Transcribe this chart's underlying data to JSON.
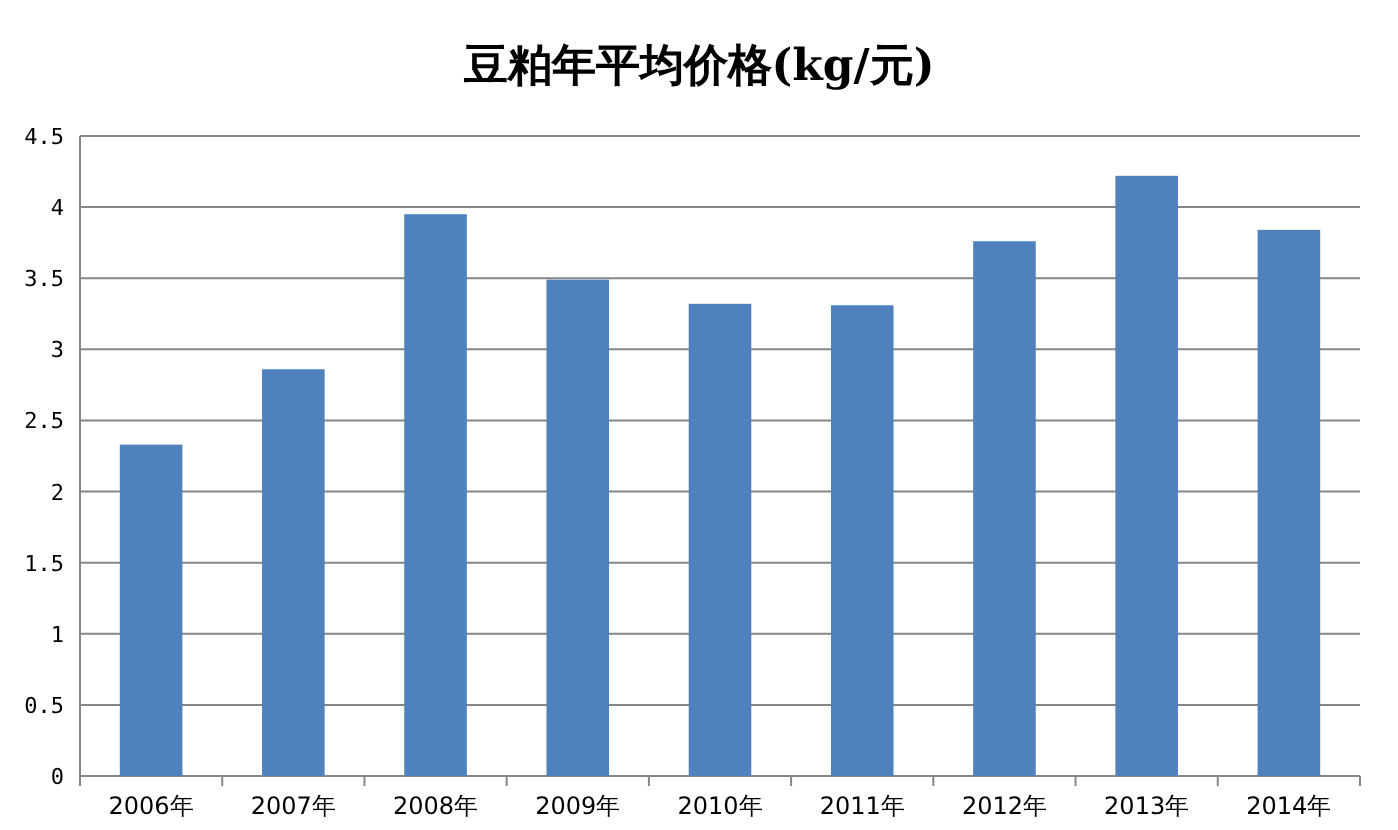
{
  "chart_data": {
    "type": "bar",
    "title": "豆粕年平均价格(kg/元)",
    "categories": [
      "2006年",
      "2007年",
      "2008年",
      "2009年",
      "2010年",
      "2011年",
      "2012年",
      "2013年",
      "2014年"
    ],
    "values": [
      2.33,
      2.86,
      3.95,
      3.49,
      3.32,
      3.31,
      3.76,
      4.22,
      3.84
    ],
    "color": "#4f81bd",
    "ylim": [
      0,
      4.5
    ],
    "yticks": [
      0,
      0.5,
      1,
      1.5,
      2,
      2.5,
      3,
      3.5,
      4,
      4.5
    ],
    "grid": "y"
  }
}
